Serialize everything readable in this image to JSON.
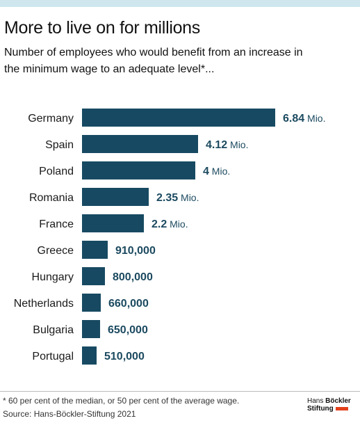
{
  "header": {
    "title": "More to live on for millions",
    "subtitle": "Number of employees who would benefit from an increase in the minimum wage to an adequate level*..."
  },
  "colors": {
    "bar": "#174a62",
    "value": "#1c4a60",
    "top_bar": "#cfe6ee",
    "logo_accent": "#e2401c"
  },
  "chart_data": {
    "type": "bar",
    "orientation": "horizontal",
    "categories": [
      "Germany",
      "Spain",
      "Poland",
      "Romania",
      "France",
      "Greece",
      "Hungary",
      "Netherlands",
      "Bulgaria",
      "Portugal"
    ],
    "values": [
      6840000,
      4120000,
      4000000,
      2350000,
      2200000,
      910000,
      800000,
      660000,
      650000,
      510000
    ],
    "labels": [
      {
        "num": "6.84",
        "unit": "Mio."
      },
      {
        "num": "4.12",
        "unit": "Mio."
      },
      {
        "num": "4",
        "unit": "Mio."
      },
      {
        "num": "2.35",
        "unit": "Mio."
      },
      {
        "num": "2.2",
        "unit": "Mio."
      },
      {
        "num": "910,000",
        "unit": ""
      },
      {
        "num": "800,000",
        "unit": ""
      },
      {
        "num": "660,000",
        "unit": ""
      },
      {
        "num": "650,000",
        "unit": ""
      },
      {
        "num": "510,000",
        "unit": ""
      }
    ],
    "xlim": [
      0,
      6840000
    ],
    "grid": false,
    "legend": "none"
  },
  "footer": {
    "footnote": "* 60 per cent of the median, or 50 per cent of the average wage.",
    "source": "Source: Hans-Böckler-Stiftung 2021",
    "logo_line1_prefix": "Hans ",
    "logo_line1_bold": "Böckler",
    "logo_line2": "Stiftung"
  }
}
